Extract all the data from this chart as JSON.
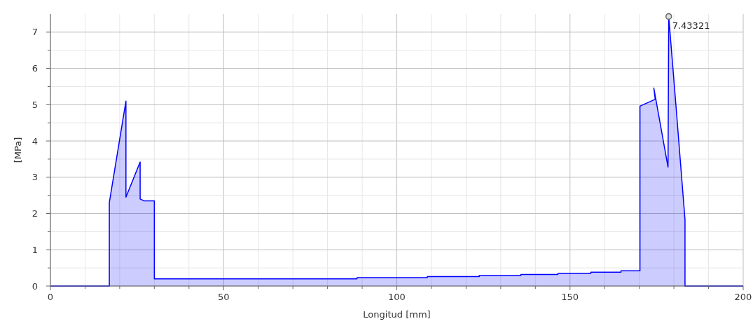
{
  "chart_data": {
    "type": "area",
    "xlabel": "Longitud [mm]",
    "ylabel": "[MPa]",
    "xlim": [
      0,
      200
    ],
    "ylim": [
      0,
      7.5
    ],
    "xticks": [
      0,
      {
        "value": 10,
        "label": null
      },
      {
        "value": 20,
        "label": null
      },
      {
        "value": 30,
        "label": null
      },
      {
        "value": 40,
        "label": null
      },
      50,
      {
        "value": 60,
        "label": null
      },
      {
        "value": 70,
        "label": null
      },
      {
        "value": 80,
        "label": null
      },
      {
        "value": 90,
        "label": null
      },
      100,
      {
        "value": 110,
        "label": null
      },
      {
        "value": 120,
        "label": null
      },
      {
        "value": 130,
        "label": null
      },
      {
        "value": 140,
        "label": null
      },
      150,
      {
        "value": 160,
        "label": null
      },
      {
        "value": 170,
        "label": null
      },
      {
        "value": 180,
        "label": null
      },
      {
        "value": 190,
        "label": null
      },
      200
    ],
    "yticks": [
      0,
      {
        "value": 0.5,
        "label": null
      },
      1,
      {
        "value": 1.5,
        "label": null
      },
      2,
      {
        "value": 2.5,
        "label": null
      },
      3,
      {
        "value": 3.5,
        "label": null
      },
      4,
      {
        "value": 4.5,
        "label": null
      },
      5,
      {
        "value": 5.5,
        "label": null
      },
      6,
      {
        "value": 6.5,
        "label": null
      },
      7
    ],
    "grid": true,
    "line_style": "solid",
    "marker": "none",
    "annotations": [
      {
        "text": "7.43321",
        "x": 178.5,
        "y": 7.43321
      }
    ],
    "series": [
      {
        "color": "#0000ff",
        "x": [
          0,
          17,
          17,
          21.8,
          21.8,
          25.9,
          25.9,
          27,
          30,
          30,
          88.5,
          88.5,
          108.8,
          108.8,
          123.8,
          123.8,
          135.8,
          135.8,
          146.5,
          146.5,
          156,
          156,
          164.7,
          164.7,
          170.2,
          170.2,
          174.6,
          174.2,
          178.3,
          178.5,
          180.6,
          183.2,
          183.2,
          200
        ],
        "values": [
          0,
          0,
          2.3,
          5.1,
          2.45,
          3.42,
          2.4,
          2.35,
          2.35,
          0.2,
          0.2,
          0.23,
          0.23,
          0.26,
          0.26,
          0.29,
          0.29,
          0.32,
          0.32,
          0.35,
          0.35,
          0.38,
          0.38,
          0.42,
          0.42,
          4.96,
          5.15,
          5.46,
          3.28,
          7.43321,
          4.96,
          1.83,
          0,
          0
        ]
      }
    ]
  }
}
